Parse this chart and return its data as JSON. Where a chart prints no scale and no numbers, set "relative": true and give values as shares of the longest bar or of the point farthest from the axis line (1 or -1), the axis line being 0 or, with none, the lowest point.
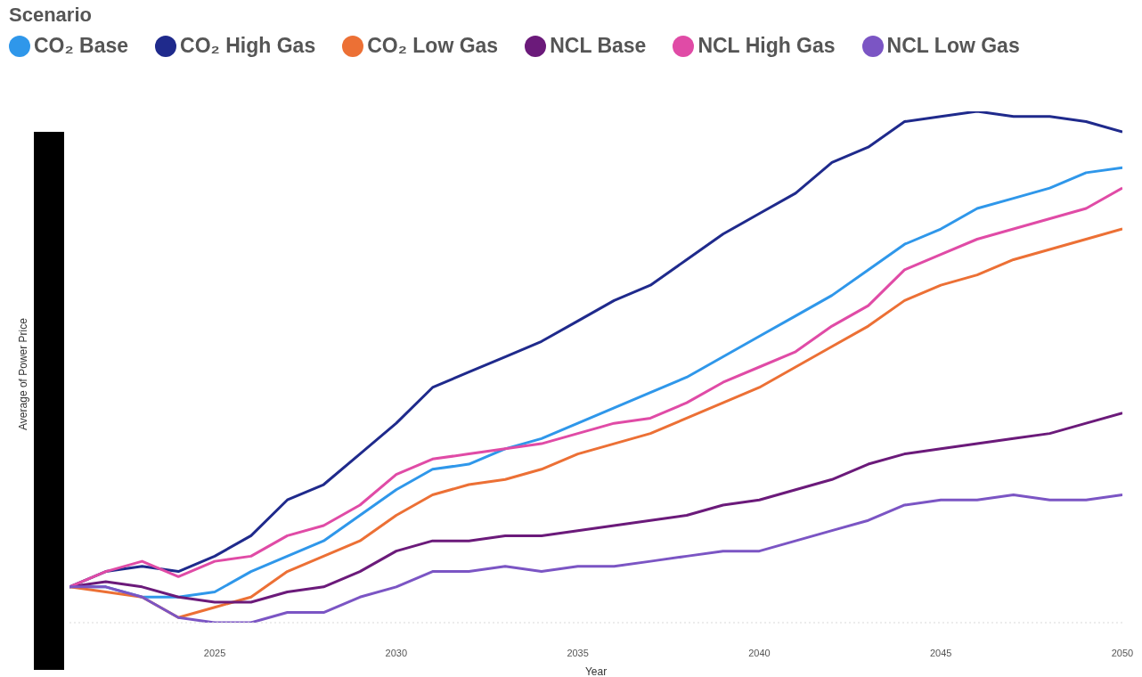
{
  "chart_data": {
    "type": "line",
    "relative": true,
    "xlabel": "Year",
    "ylabel": "Average of Power Price",
    "legend_title": "Scenario",
    "legend": "top",
    "x": [
      2021,
      2022,
      2023,
      2024,
      2025,
      2026,
      2027,
      2028,
      2029,
      2030,
      2031,
      2032,
      2033,
      2034,
      2035,
      2036,
      2037,
      2038,
      2039,
      2040,
      2041,
      2042,
      2043,
      2044,
      2045,
      2046,
      2047,
      2048,
      2049,
      2050
    ],
    "xlim": [
      2021,
      2050
    ],
    "xticks": [
      2025,
      2030,
      2035,
      2040,
      2045,
      2050
    ],
    "series": [
      {
        "name": "CO₂ Base",
        "color": "#2f97ea",
        "values": [
          0.07,
          0.07,
          0.05,
          0.05,
          0.06,
          0.1,
          0.13,
          0.16,
          0.21,
          0.26,
          0.3,
          0.31,
          0.34,
          0.36,
          0.39,
          0.42,
          0.45,
          0.48,
          0.52,
          0.56,
          0.6,
          0.64,
          0.69,
          0.74,
          0.77,
          0.81,
          0.83,
          0.85,
          0.88,
          0.89
        ]
      },
      {
        "name": "CO₂ High Gas",
        "color": "#1f2a8c",
        "values": [
          0.07,
          0.1,
          0.11,
          0.1,
          0.13,
          0.17,
          0.24,
          0.27,
          0.33,
          0.39,
          0.46,
          0.49,
          0.52,
          0.55,
          0.59,
          0.63,
          0.66,
          0.71,
          0.76,
          0.8,
          0.84,
          0.9,
          0.93,
          0.98,
          0.99,
          1,
          0.99,
          0.99,
          0.98,
          0.96
        ]
      },
      {
        "name": "CO₂ Low Gas",
        "color": "#ec7035",
        "values": [
          0.07,
          0.06,
          0.05,
          0.01,
          0.03,
          0.05,
          0.1,
          0.13,
          0.16,
          0.21,
          0.25,
          0.27,
          0.28,
          0.3,
          0.33,
          0.35,
          0.37,
          0.4,
          0.43,
          0.46,
          0.5,
          0.54,
          0.58,
          0.63,
          0.66,
          0.68,
          0.71,
          0.73,
          0.75,
          0.77
        ]
      },
      {
        "name": "NCL Base",
        "color": "#6b1a7a",
        "values": [
          0.07,
          0.08,
          0.07,
          0.05,
          0.04,
          0.04,
          0.06,
          0.07,
          0.1,
          0.14,
          0.16,
          0.16,
          0.17,
          0.17,
          0.18,
          0.19,
          0.2,
          0.21,
          0.23,
          0.24,
          0.26,
          0.28,
          0.31,
          0.33,
          0.34,
          0.35,
          0.36,
          0.37,
          0.39,
          0.41
        ]
      },
      {
        "name": "NCL High Gas",
        "color": "#e04ba6",
        "values": [
          0.07,
          0.1,
          0.12,
          0.09,
          0.12,
          0.13,
          0.17,
          0.19,
          0.23,
          0.29,
          0.32,
          0.33,
          0.34,
          0.35,
          0.37,
          0.39,
          0.4,
          0.43,
          0.47,
          0.5,
          0.53,
          0.58,
          0.62,
          0.69,
          0.72,
          0.75,
          0.77,
          0.79,
          0.81,
          0.85
        ]
      },
      {
        "name": "NCL Low Gas",
        "color": "#7b55c4",
        "values": [
          0.07,
          0.07,
          0.05,
          0.01,
          0.0,
          0,
          0.02,
          0.02,
          0.05,
          0.07,
          0.1,
          0.1,
          0.11,
          0.1,
          0.11,
          0.11,
          0.12,
          0.13,
          0.14,
          0.14,
          0.16,
          0.18,
          0.2,
          0.23,
          0.24,
          0.24,
          0.25,
          0.24,
          0.24,
          0.25
        ]
      }
    ]
  }
}
